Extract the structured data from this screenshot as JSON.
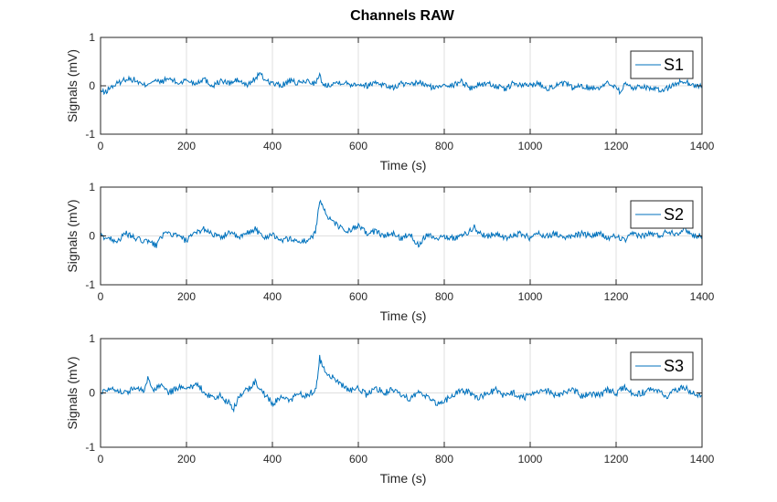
{
  "title": "Channels RAW",
  "colors": {
    "line": "#0072bd",
    "axis": "#262626",
    "grid": "#dfdfdf"
  },
  "chart_data": [
    {
      "type": "line",
      "legend": "S1",
      "legend_position": "top-right",
      "xlabel": "Time (s)",
      "ylabel": "Signals (mV)",
      "xlim": [
        0,
        1400
      ],
      "ylim": [
        -1,
        1
      ],
      "xticks": [
        0,
        200,
        400,
        600,
        800,
        1000,
        1200,
        1400
      ],
      "yticks": [
        -1,
        0,
        1
      ],
      "grid": true,
      "series": [
        {
          "name": "S1",
          "x": [
            0,
            10,
            20,
            40,
            60,
            80,
            100,
            120,
            140,
            160,
            180,
            200,
            220,
            240,
            260,
            280,
            300,
            320,
            340,
            360,
            370,
            380,
            400,
            420,
            440,
            460,
            480,
            500,
            510,
            520,
            540,
            560,
            580,
            600,
            620,
            640,
            660,
            680,
            700,
            720,
            740,
            760,
            780,
            800,
            820,
            840,
            860,
            880,
            900,
            920,
            940,
            960,
            980,
            1000,
            1020,
            1040,
            1060,
            1080,
            1100,
            1120,
            1140,
            1160,
            1180,
            1200,
            1210,
            1220,
            1240,
            1260,
            1280,
            1300,
            1320,
            1340,
            1360,
            1380,
            1400
          ],
          "y": [
            -0.1,
            -0.15,
            -0.05,
            0.05,
            0.15,
            0.12,
            0.0,
            0.1,
            0.08,
            0.15,
            0.05,
            0.12,
            0.05,
            0.15,
            0.0,
            0.1,
            0.05,
            0.12,
            0.0,
            0.15,
            0.25,
            0.15,
            0.05,
            0.0,
            0.1,
            0.05,
            0.1,
            0.05,
            0.2,
            0.0,
            0.05,
            0.08,
            0.03,
            0.05,
            0.0,
            0.08,
            0.02,
            -0.05,
            0.05,
            0.0,
            0.08,
            0.0,
            -0.05,
            0.05,
            0.0,
            0.1,
            -0.05,
            0.02,
            0.05,
            0.0,
            -0.08,
            0.05,
            0.0,
            0.02,
            0.05,
            -0.05,
            0.0,
            0.05,
            -0.05,
            0.0,
            -0.05,
            -0.03,
            0.05,
            0.0,
            -0.15,
            0.05,
            -0.05,
            0.0,
            -0.05,
            -0.1,
            -0.05,
            0.05,
            0.1,
            0.0,
            0.0
          ]
        }
      ]
    },
    {
      "type": "line",
      "legend": "S2",
      "legend_position": "top-right",
      "xlabel": "Time (s)",
      "ylabel": "Signals (mV)",
      "xlim": [
        0,
        1400
      ],
      "ylim": [
        -1,
        1
      ],
      "xticks": [
        0,
        200,
        400,
        600,
        800,
        1000,
        1200,
        1400
      ],
      "yticks": [
        -1,
        0,
        1
      ],
      "grid": true,
      "series": [
        {
          "name": "S2",
          "x": [
            0,
            20,
            40,
            60,
            80,
            100,
            120,
            130,
            140,
            160,
            180,
            200,
            220,
            240,
            260,
            280,
            300,
            320,
            340,
            360,
            380,
            400,
            420,
            440,
            460,
            480,
            500,
            505,
            510,
            520,
            530,
            540,
            560,
            580,
            600,
            620,
            640,
            660,
            680,
            700,
            720,
            740,
            760,
            780,
            800,
            820,
            840,
            860,
            870,
            880,
            900,
            920,
            940,
            960,
            980,
            1000,
            1020,
            1040,
            1060,
            1080,
            1100,
            1120,
            1140,
            1160,
            1180,
            1200,
            1220,
            1240,
            1260,
            1280,
            1300,
            1320,
            1340,
            1360,
            1380,
            1400
          ],
          "y": [
            0.0,
            -0.05,
            -0.1,
            0.05,
            -0.05,
            -0.1,
            -0.15,
            -0.2,
            0.0,
            0.05,
            0.0,
            -0.1,
            0.05,
            0.15,
            0.05,
            -0.05,
            0.1,
            -0.05,
            0.05,
            0.15,
            -0.05,
            0.05,
            -0.1,
            -0.05,
            -0.12,
            -0.1,
            0.05,
            0.4,
            0.75,
            0.55,
            0.35,
            0.3,
            0.15,
            0.1,
            0.2,
            0.05,
            0.1,
            0.0,
            0.05,
            -0.05,
            0.05,
            -0.2,
            0.05,
            -0.05,
            0.0,
            -0.05,
            0.0,
            0.1,
            0.2,
            0.05,
            0.0,
            0.05,
            -0.05,
            0.0,
            0.05,
            -0.05,
            0.05,
            0.0,
            0.05,
            -0.05,
            0.0,
            0.05,
            0.0,
            0.05,
            -0.05,
            0.0,
            -0.1,
            0.05,
            0.0,
            0.05,
            0.0,
            0.1,
            0.05,
            0.15,
            0.0,
            0.02
          ]
        }
      ]
    },
    {
      "type": "line",
      "legend": "S3",
      "legend_position": "top-right",
      "xlabel": "Time (s)",
      "ylabel": "Signals (mV)",
      "xlim": [
        0,
        1400
      ],
      "ylim": [
        -1,
        1
      ],
      "xticks": [
        0,
        200,
        400,
        600,
        800,
        1000,
        1200,
        1400
      ],
      "yticks": [
        -1,
        0,
        1
      ],
      "grid": true,
      "series": [
        {
          "name": "S3",
          "x": [
            0,
            20,
            40,
            60,
            80,
            100,
            110,
            120,
            140,
            160,
            180,
            200,
            220,
            240,
            260,
            280,
            300,
            310,
            320,
            340,
            360,
            380,
            400,
            420,
            440,
            460,
            480,
            500,
            505,
            510,
            520,
            530,
            540,
            560,
            580,
            600,
            620,
            640,
            660,
            680,
            700,
            720,
            740,
            760,
            780,
            800,
            820,
            840,
            860,
            880,
            900,
            920,
            940,
            960,
            980,
            1000,
            1020,
            1040,
            1060,
            1080,
            1100,
            1120,
            1140,
            1160,
            1180,
            1200,
            1220,
            1240,
            1260,
            1280,
            1300,
            1320,
            1340,
            1360,
            1380,
            1400
          ],
          "y": [
            0.0,
            0.1,
            0.05,
            0.0,
            0.1,
            0.05,
            0.25,
            0.05,
            0.15,
            0.0,
            0.1,
            0.05,
            0.15,
            0.05,
            -0.1,
            -0.05,
            -0.2,
            -0.3,
            -0.1,
            0.05,
            0.2,
            0.0,
            -0.2,
            -0.1,
            -0.15,
            0.0,
            -0.05,
            0.05,
            0.3,
            0.65,
            0.45,
            0.35,
            0.3,
            0.15,
            0.05,
            0.1,
            -0.05,
            0.1,
            0.0,
            0.05,
            -0.05,
            -0.1,
            0.0,
            -0.05,
            -0.2,
            -0.15,
            -0.05,
            0.05,
            0.0,
            -0.1,
            0.0,
            0.05,
            -0.05,
            0.0,
            -0.1,
            -0.05,
            0.0,
            0.05,
            -0.05,
            0.0,
            0.05,
            -0.05,
            0.0,
            -0.05,
            0.05,
            0.0,
            0.1,
            -0.05,
            0.0,
            0.05,
            0.0,
            -0.05,
            0.05,
            0.1,
            0.0,
            -0.05
          ]
        }
      ]
    }
  ]
}
